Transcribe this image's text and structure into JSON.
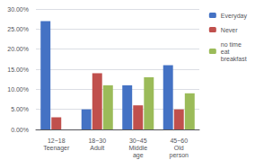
{
  "chart_data": {
    "type": "bar",
    "categories": [
      "12~18\nTeenager",
      "18~30\nAdult",
      "30~45\nMiddle\nage",
      "45~60\nOld\nperson"
    ],
    "series": [
      {
        "name": "Everyday",
        "color": "#4472C4",
        "values": [
          27.0,
          5.0,
          11.0,
          16.0
        ]
      },
      {
        "name": "Never",
        "color": "#C0504D",
        "values": [
          3.0,
          14.0,
          6.0,
          5.0
        ]
      },
      {
        "name": "no time\neat\nbreakfast",
        "color": "#9BBB59",
        "values": [
          0.0,
          11.0,
          13.0,
          9.0
        ]
      }
    ],
    "ylim": [
      0,
      30
    ],
    "yticks": [
      {
        "value": 0,
        "label": "0.00%"
      },
      {
        "value": 5,
        "label": "5.00%"
      },
      {
        "value": 10,
        "label": "10.00%"
      },
      {
        "value": 15,
        "label": "15.00%"
      },
      {
        "value": 20,
        "label": "20.00%"
      },
      {
        "value": 25,
        "label": "25.00%"
      },
      {
        "value": 30,
        "label": "30.00%"
      }
    ],
    "grid": true,
    "legend": "right"
  }
}
